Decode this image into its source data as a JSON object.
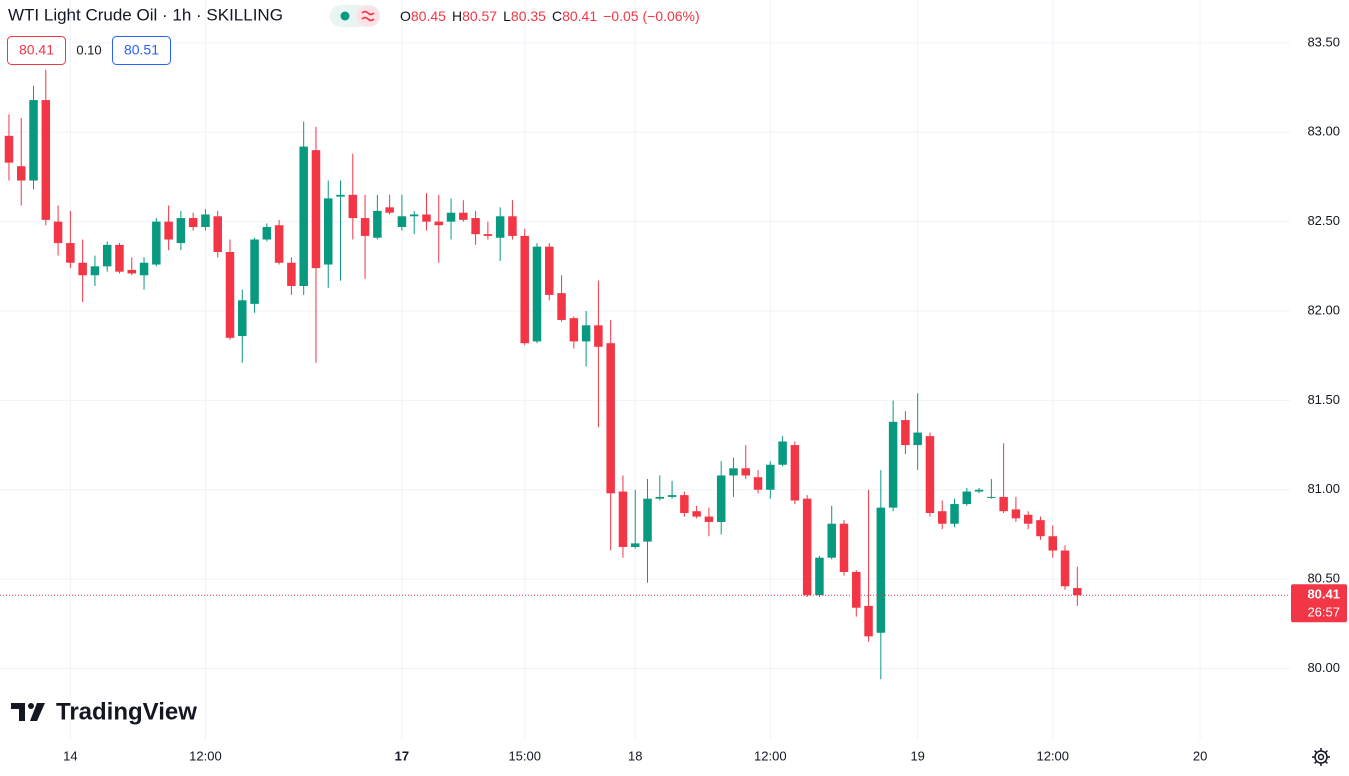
{
  "chart_data": {
    "type": "candlestick",
    "title": "WTI Light Crude Oil · 1h · SKILLING",
    "ohlc_legend": [
      {
        "label": "O",
        "value": "80.45"
      },
      {
        "label": "H",
        "value": "80.57"
      },
      {
        "label": "L",
        "value": "80.35"
      },
      {
        "label": "C",
        "value": "80.41"
      }
    ],
    "change": "−0.05 (−0.06%)",
    "bid": "80.41",
    "spread": "0.10",
    "ask": "80.51",
    "logo": "TradingView",
    "up_color": "#089981",
    "down_color": "#f23645",
    "grid": true,
    "last_price": {
      "value": 80.41,
      "countdown": "26:57"
    },
    "xlim": [
      -0.73,
      104.32
    ],
    "xticks": [
      {
        "value": 5,
        "label": "14"
      },
      {
        "value": 16,
        "label": "12:00"
      },
      {
        "value": 32,
        "label": "17",
        "bold": true
      },
      {
        "value": 42,
        "label": "15:00"
      },
      {
        "value": 51,
        "label": "18"
      },
      {
        "value": 62,
        "label": "12:00"
      },
      {
        "value": 74,
        "label": "19"
      },
      {
        "value": 85,
        "label": "12:00"
      },
      {
        "value": 97,
        "label": "20"
      }
    ],
    "ylim": [
      79.6,
      83.74
    ],
    "yticks": [
      {
        "value": 80.0,
        "label": "80.00"
      },
      {
        "value": 80.5,
        "label": "80.50"
      },
      {
        "value": 81.0,
        "label": "81.00"
      },
      {
        "value": 81.5,
        "label": "81.50"
      },
      {
        "value": 82.0,
        "label": "82.00"
      },
      {
        "value": 82.5,
        "label": "82.50"
      },
      {
        "value": 83.0,
        "label": "83.00"
      },
      {
        "value": 83.5,
        "label": "83.50"
      }
    ],
    "open": [
      82.98,
      82.81,
      82.73,
      83.18,
      82.5,
      82.38,
      82.27,
      82.2,
      82.25,
      82.37,
      82.23,
      82.2,
      82.26,
      82.5,
      82.38,
      82.52,
      82.47,
      82.53,
      82.33,
      81.86,
      82.04,
      82.4,
      82.48,
      82.27,
      82.14,
      82.9,
      82.26,
      82.64,
      82.65,
      82.52,
      82.41,
      82.58,
      82.47,
      82.53,
      82.54,
      82.5,
      82.5,
      82.55,
      82.52,
      82.43,
      82.41,
      82.53,
      82.42,
      81.83,
      82.36,
      82.1,
      81.96,
      81.83,
      81.92,
      81.82,
      80.99,
      80.68,
      80.71,
      80.95,
      80.96,
      80.97,
      80.88,
      80.85,
      80.82,
      81.08,
      81.12,
      81.07,
      81.0,
      81.14,
      81.25,
      80.95,
      80.41,
      80.62,
      80.81,
      80.54,
      80.35,
      80.2,
      80.9,
      81.39,
      81.25,
      81.3,
      80.88,
      80.81,
      80.92,
      80.99,
      80.96,
      80.96,
      80.89,
      80.86,
      80.83,
      80.74,
      80.66,
      80.45
    ],
    "high": [
      83.1,
      83.08,
      83.26,
      83.35,
      82.59,
      82.56,
      82.4,
      82.31,
      82.39,
      82.38,
      82.3,
      82.3,
      82.52,
      82.59,
      82.56,
      82.55,
      82.57,
      82.56,
      82.4,
      82.12,
      82.41,
      82.49,
      82.51,
      82.3,
      83.06,
      83.03,
      82.73,
      82.73,
      82.88,
      82.65,
      82.65,
      82.65,
      82.65,
      82.56,
      82.66,
      82.65,
      82.63,
      82.62,
      82.56,
      82.5,
      82.58,
      82.62,
      82.46,
      82.38,
      82.38,
      82.2,
      81.97,
      82.0,
      82.17,
      81.95,
      81.08,
      81.0,
      81.06,
      81.08,
      81.05,
      80.99,
      80.91,
      80.9,
      81.16,
      81.18,
      81.25,
      81.11,
      81.16,
      81.3,
      81.27,
      80.97,
      80.63,
      80.91,
      80.83,
      80.55,
      81.0,
      81.11,
      81.5,
      81.44,
      81.54,
      81.32,
      80.94,
      80.95,
      81.01,
      81.01,
      81.06,
      81.26,
      80.96,
      80.88,
      80.85,
      80.8,
      80.69,
      80.57
    ],
    "low": [
      82.73,
      82.59,
      82.68,
      82.48,
      82.31,
      82.24,
      82.05,
      82.14,
      82.22,
      82.21,
      82.2,
      82.12,
      82.25,
      82.34,
      82.34,
      82.45,
      82.45,
      82.3,
      81.84,
      81.71,
      81.99,
      82.39,
      82.26,
      82.09,
      82.09,
      81.71,
      82.13,
      82.17,
      82.4,
      82.18,
      82.4,
      82.54,
      82.45,
      82.43,
      82.45,
      82.27,
      82.4,
      82.5,
      82.37,
      82.4,
      82.28,
      82.4,
      81.81,
      81.82,
      82.06,
      81.94,
      81.79,
      81.69,
      81.35,
      80.66,
      80.62,
      80.67,
      80.48,
      80.94,
      80.95,
      80.85,
      80.84,
      80.74,
      80.75,
      80.96,
      81.06,
      80.98,
      80.95,
      81.13,
      80.92,
      80.4,
      80.4,
      80.61,
      80.52,
      80.29,
      80.15,
      79.94,
      80.88,
      81.2,
      81.11,
      80.85,
      80.78,
      80.79,
      80.91,
      80.98,
      80.95,
      80.87,
      80.82,
      80.78,
      80.72,
      80.62,
      80.44,
      80.35
    ],
    "close": [
      82.83,
      82.73,
      83.18,
      82.51,
      82.38,
      82.27,
      82.2,
      82.25,
      82.37,
      82.22,
      82.21,
      82.27,
      82.5,
      82.4,
      82.52,
      82.47,
      82.54,
      82.33,
      81.85,
      82.06,
      82.4,
      82.47,
      82.27,
      82.14,
      82.92,
      82.24,
      82.63,
      82.65,
      82.52,
      82.42,
      82.56,
      82.55,
      82.53,
      82.54,
      82.5,
      82.48,
      82.55,
      82.51,
      82.43,
      82.42,
      82.53,
      82.42,
      81.82,
      82.36,
      82.09,
      81.95,
      81.83,
      81.92,
      81.8,
      80.98,
      80.68,
      80.7,
      80.95,
      80.96,
      80.97,
      80.87,
      80.85,
      80.82,
      81.08,
      81.12,
      81.08,
      81.0,
      81.14,
      81.27,
      80.94,
      80.41,
      80.62,
      80.81,
      80.54,
      80.34,
      80.18,
      80.9,
      81.38,
      81.25,
      81.32,
      80.87,
      80.81,
      80.92,
      80.99,
      81.0,
      80.96,
      80.88,
      80.84,
      80.81,
      80.74,
      80.66,
      80.46,
      80.41
    ]
  }
}
